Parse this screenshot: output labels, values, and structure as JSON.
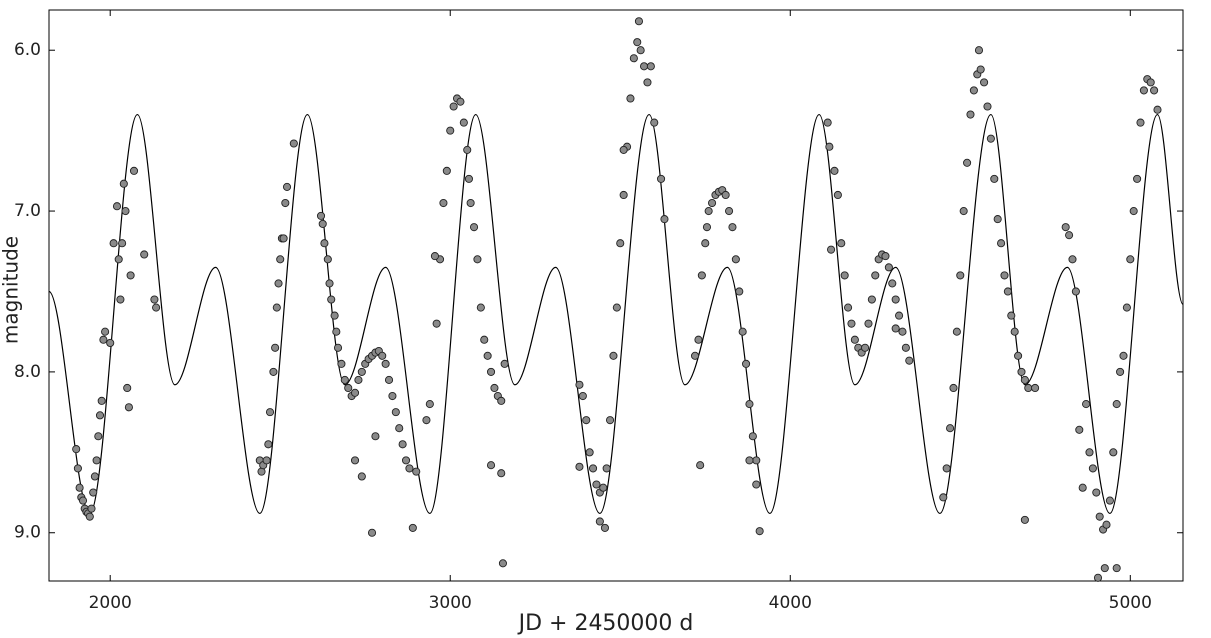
{
  "chart_data": {
    "type": "scatter",
    "xlabel": "JD + 2450000 d",
    "ylabel": "magnitude",
    "xlim": [
      1820,
      5155
    ],
    "ylim": [
      5.75,
      9.3
    ],
    "y_inverted": true,
    "xticks": [
      2000,
      3000,
      4000,
      5000
    ],
    "yticks": [
      {
        "value": 6,
        "label": "6.0"
      },
      {
        "value": 7,
        "label": "7.0"
      },
      {
        "value": 8,
        "label": "8.0"
      },
      {
        "value": 9,
        "label": "9.0"
      }
    ],
    "color": "#8a8a8a",
    "x": [
      1900,
      1905,
      1910,
      1915,
      1920,
      1925,
      1930,
      1935,
      1940,
      1945,
      1950,
      1955,
      1960,
      1965,
      1970,
      1975,
      1980,
      1985,
      2000,
      2010,
      2020,
      2025,
      2030,
      2035,
      2040,
      2045,
      2050,
      2055,
      2060,
      2070,
      2100,
      2130,
      2135,
      2440,
      2445,
      2450,
      2460,
      2465,
      2470,
      2480,
      2485,
      2490,
      2495,
      2500,
      2505,
      2510,
      2515,
      2520,
      2540,
      2620,
      2625,
      2630,
      2640,
      2645,
      2650,
      2660,
      2665,
      2670,
      2680,
      2690,
      2700,
      2710,
      2720,
      2730,
      2740,
      2750,
      2760,
      2770,
      2780,
      2790,
      2800,
      2810,
      2820,
      2830,
      2840,
      2850,
      2860,
      2870,
      2880,
      2720,
      2740,
      2770,
      2780,
      2890,
      2900,
      2930,
      2940,
      2960,
      2970,
      2980,
      2990,
      3000,
      3010,
      3020,
      3030,
      3040,
      3050,
      3055,
      3060,
      3070,
      3080,
      3090,
      3100,
      3110,
      3120,
      3130,
      3140,
      3150,
      3160,
      3120,
      3150,
      3155,
      2955,
      3380,
      3390,
      3400,
      3410,
      3420,
      3430,
      3440,
      3450,
      3460,
      3470,
      3480,
      3490,
      3500,
      3510,
      3520,
      3530,
      3540,
      3550,
      3555,
      3560,
      3570,
      3580,
      3590,
      3600,
      3620,
      3630,
      3380,
      3440,
      3455,
      3510,
      3720,
      3730,
      3740,
      3750,
      3755,
      3760,
      3770,
      3780,
      3790,
      3800,
      3810,
      3820,
      3830,
      3840,
      3850,
      3860,
      3870,
      3880,
      3890,
      3900,
      3910,
      3735,
      3880,
      3900,
      4110,
      4115,
      4130,
      4140,
      4150,
      4160,
      4170,
      4180,
      4190,
      4200,
      4210,
      4220,
      4230,
      4240,
      4250,
      4260,
      4270,
      4280,
      4290,
      4300,
      4310,
      4320,
      4330,
      4340,
      4350,
      4120,
      4310,
      4450,
      4460,
      4470,
      4480,
      4490,
      4500,
      4510,
      4520,
      4530,
      4540,
      4550,
      4555,
      4560,
      4570,
      4580,
      4590,
      4600,
      4610,
      4620,
      4630,
      4640,
      4650,
      4660,
      4670,
      4680,
      4690,
      4700,
      4720,
      4690,
      4810,
      4820,
      4830,
      4840,
      4850,
      4860,
      4870,
      4880,
      4890,
      4900,
      4910,
      4920,
      4930,
      4940,
      4950,
      4960,
      4970,
      4980,
      4990,
      5000,
      5010,
      5020,
      5030,
      5040,
      5050,
      5060,
      5070,
      5080,
      4905,
      4925,
      4960
    ],
    "values": [
      8.48,
      8.6,
      8.72,
      8.78,
      8.8,
      8.85,
      8.87,
      8.88,
      8.9,
      8.85,
      8.75,
      8.65,
      8.55,
      8.4,
      8.27,
      8.18,
      7.8,
      7.75,
      7.82,
      7.2,
      6.97,
      7.3,
      7.55,
      7.2,
      6.83,
      7.0,
      8.1,
      8.22,
      7.4,
      6.75,
      7.27,
      7.55,
      7.6,
      8.55,
      8.62,
      8.58,
      8.55,
      8.45,
      8.25,
      8.0,
      7.85,
      7.6,
      7.45,
      7.3,
      7.17,
      7.17,
      6.95,
      6.85,
      6.58,
      7.03,
      7.08,
      7.2,
      7.3,
      7.45,
      7.55,
      7.65,
      7.75,
      7.85,
      7.95,
      8.05,
      8.1,
      8.15,
      8.13,
      8.05,
      8.0,
      7.95,
      7.92,
      7.9,
      7.88,
      7.87,
      7.9,
      7.95,
      8.05,
      8.15,
      8.25,
      8.35,
      8.45,
      8.55,
      8.6,
      8.55,
      8.65,
      9.0,
      8.4,
      8.97,
      8.62,
      8.3,
      8.2,
      7.7,
      7.3,
      6.95,
      6.75,
      6.5,
      6.35,
      6.3,
      6.32,
      6.45,
      6.62,
      6.8,
      6.95,
      7.1,
      7.3,
      7.6,
      7.8,
      7.9,
      8.0,
      8.1,
      8.15,
      8.18,
      7.95,
      8.58,
      8.63,
      9.19,
      7.28,
      8.08,
      8.15,
      8.3,
      8.5,
      8.6,
      8.7,
      8.75,
      8.72,
      8.6,
      8.3,
      7.9,
      7.6,
      7.2,
      6.9,
      6.6,
      6.3,
      6.05,
      5.95,
      5.82,
      6.0,
      6.1,
      6.2,
      6.1,
      6.45,
      6.8,
      7.05,
      8.59,
      8.93,
      8.97,
      6.62,
      7.9,
      7.8,
      7.4,
      7.2,
      7.1,
      7.0,
      6.95,
      6.9,
      6.88,
      6.87,
      6.9,
      7.0,
      7.1,
      7.3,
      7.5,
      7.75,
      7.95,
      8.2,
      8.4,
      8.55,
      8.99,
      8.58,
      8.55,
      8.7,
      6.45,
      6.6,
      6.75,
      6.9,
      7.2,
      7.4,
      7.6,
      7.7,
      7.8,
      7.85,
      7.88,
      7.85,
      7.7,
      7.55,
      7.4,
      7.3,
      7.27,
      7.28,
      7.35,
      7.45,
      7.55,
      7.65,
      7.75,
      7.85,
      7.93,
      7.24,
      7.73,
      8.78,
      8.6,
      8.35,
      8.1,
      7.75,
      7.4,
      7.0,
      6.7,
      6.4,
      6.25,
      6.15,
      6.0,
      6.12,
      6.2,
      6.35,
      6.55,
      6.8,
      7.05,
      7.2,
      7.4,
      7.5,
      7.65,
      7.75,
      7.9,
      8.0,
      8.05,
      8.1,
      8.1,
      8.92,
      7.1,
      7.15,
      7.3,
      7.5,
      8.36,
      8.72,
      8.2,
      8.5,
      8.6,
      8.75,
      8.9,
      8.98,
      8.95,
      8.8,
      8.5,
      8.2,
      8.0,
      7.9,
      7.6,
      7.3,
      7.0,
      6.8,
      6.45,
      6.25,
      6.18,
      6.2,
      6.25,
      6.37,
      9.28,
      9.22,
      9.22
    ],
    "curve": {
      "type": "line",
      "color": "#000000",
      "x": [
        1820,
        1940,
        2080,
        2190,
        2310,
        2440,
        2580,
        2690,
        2810,
        2940,
        3075,
        3190,
        3310,
        3440,
        3585,
        3690,
        3815,
        3940,
        4085,
        4190,
        4310,
        4440,
        4590,
        4690,
        4815,
        4940,
        5080,
        5155
      ],
      "values": [
        7.5,
        8.88,
        6.4,
        8.08,
        7.35,
        8.88,
        6.4,
        8.08,
        7.35,
        8.88,
        6.4,
        8.08,
        7.35,
        8.88,
        6.4,
        8.08,
        7.35,
        8.88,
        6.4,
        8.08,
        7.35,
        8.88,
        6.4,
        8.08,
        7.35,
        8.88,
        6.4,
        7.58
      ]
    }
  }
}
